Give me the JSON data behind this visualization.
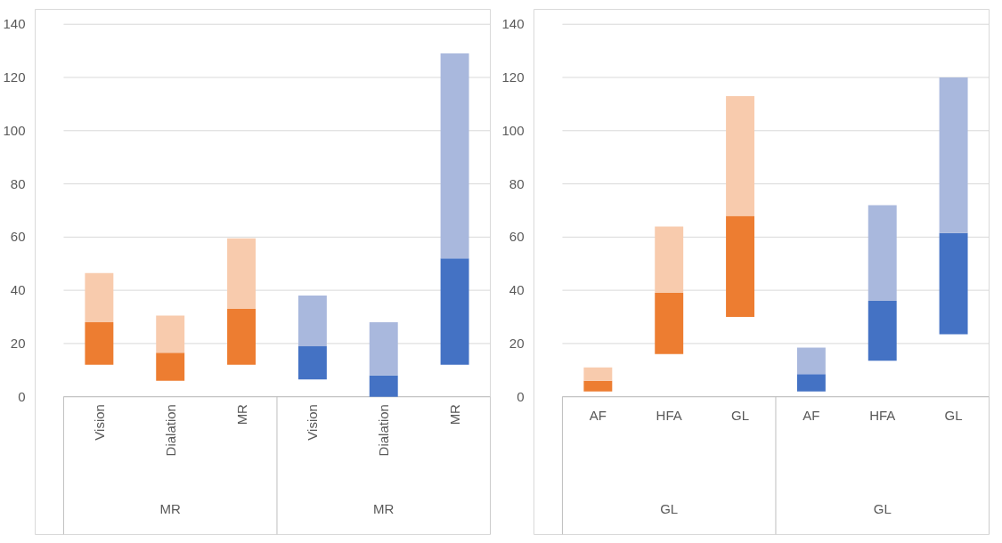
{
  "chart_data": [
    {
      "type": "bar",
      "categories": [
        "Vision",
        "Dialation",
        "MR",
        "Vision",
        "Dialation",
        "MR"
      ],
      "series": [
        {
          "colors": [
            "#ed7d31",
            "#ed7d31",
            "#ed7d31",
            "#4472c4",
            "#4472c4",
            "#4472c4"
          ],
          "base": [
            12,
            6,
            12,
            6.5,
            0,
            12
          ],
          "values": [
            16,
            10.5,
            21,
            12.5,
            8,
            40
          ]
        },
        {
          "colors": [
            "#f8cbad",
            "#f8cbad",
            "#f8cbad",
            "#a9b8dd",
            "#a9b8dd",
            "#a9b8dd"
          ],
          "base": [
            28,
            16.5,
            33,
            19,
            8,
            52
          ],
          "values": [
            18.5,
            14,
            26.5,
            19,
            20,
            77
          ]
        }
      ],
      "annotations": [
        "MR",
        "MR"
      ],
      "ylim": [
        0,
        140
      ],
      "yticks": [
        0,
        20,
        40,
        60,
        80,
        100,
        120,
        140
      ],
      "grid": "y"
    },
    {
      "type": "bar",
      "categories": [
        "AF",
        "HFA",
        "GL",
        "AF",
        "HFA",
        "GL"
      ],
      "series": [
        {
          "colors": [
            "#ed7d31",
            "#ed7d31",
            "#ed7d31",
            "#4472c4",
            "#4472c4",
            "#4472c4"
          ],
          "base": [
            2,
            16,
            30,
            2,
            13.5,
            23.5
          ],
          "values": [
            4,
            23,
            38,
            6.5,
            22.5,
            38
          ]
        },
        {
          "colors": [
            "#f8cbad",
            "#f8cbad",
            "#f8cbad",
            "#a9b8dd",
            "#a9b8dd",
            "#a9b8dd"
          ],
          "base": [
            6,
            39,
            68,
            8.5,
            36,
            61.5
          ],
          "values": [
            5,
            25,
            45,
            10,
            36,
            58.5
          ]
        }
      ],
      "annotations": [
        "GL",
        "GL"
      ],
      "ylim": [
        0,
        140
      ],
      "yticks": [
        0,
        20,
        40,
        60,
        80,
        100,
        120,
        140
      ],
      "grid": "y"
    }
  ]
}
